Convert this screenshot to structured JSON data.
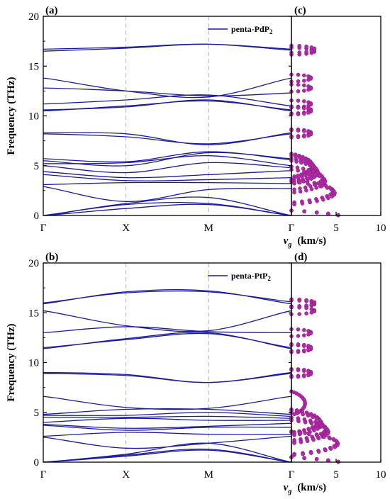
{
  "colors": {
    "band": "#1a1aa0",
    "vg_scatter": "#b02aa6",
    "grid_dash": "#b4b4b4",
    "axis": "#000000"
  },
  "chart_data": [
    {
      "type": "line",
      "panel_label": "(a)",
      "legend": {
        "name": "penta-PdP",
        "subscript": "2",
        "placement": "top-right"
      },
      "ylabel": "Frequency (THz)",
      "ylim": [
        0,
        20
      ],
      "y_ticks": [
        0,
        5,
        10,
        15,
        20
      ],
      "x_ticks": [
        "Γ",
        "X",
        "M",
        "Γ"
      ],
      "band_values": [
        [
          16.5,
          16.8,
          17.2,
          16.7
        ],
        [
          16.7,
          16.9,
          17.2,
          16.6
        ],
        [
          13.8,
          12.5,
          11.9,
          13.8
        ],
        [
          12.8,
          12.5,
          12.0,
          12.3
        ],
        [
          11.2,
          11.6,
          12.1,
          11.0
        ],
        [
          10.6,
          10.9,
          11.6,
          10.5
        ],
        [
          10.5,
          11.0,
          11.5,
          10.6
        ],
        [
          8.3,
          8.2,
          7.1,
          8.3
        ],
        [
          8.2,
          7.9,
          7.2,
          8.2
        ],
        [
          5.7,
          5.4,
          6.4,
          5.6
        ],
        [
          5.5,
          5.0,
          6.3,
          5.7
        ],
        [
          5.2,
          5.3,
          6.0,
          5.0
        ],
        [
          5.0,
          4.3,
          5.3,
          4.8
        ],
        [
          4.4,
          3.8,
          4.1,
          4.5
        ],
        [
          4.1,
          3.5,
          3.6,
          3.8
        ],
        [
          3.1,
          3.3,
          3.3,
          3.2
        ],
        [
          2.9,
          1.4,
          2.6,
          2.7
        ],
        [
          0,
          1.2,
          1.8,
          0
        ],
        [
          0,
          1.1,
          1.2,
          0
        ],
        [
          0,
          0.7,
          1.1,
          0
        ]
      ],
      "vg_panel_label": "(c)",
      "vg_xlabel": "v",
      "vg_xlabel_sub": "g",
      "vg_xlabel_unit": "(km/s)",
      "vg_xlim": [
        0,
        10
      ],
      "vg_x_ticks": [
        0,
        5,
        10
      ]
    },
    {
      "type": "line",
      "panel_label": "(b)",
      "legend": {
        "name": "penta-PtP",
        "subscript": "2",
        "placement": "top-right"
      },
      "ylabel": "Frequency (THz)",
      "ylim": [
        0,
        20
      ],
      "y_ticks": [
        0,
        5,
        10,
        15,
        20
      ],
      "x_ticks": [
        "Γ",
        "X",
        "M",
        "Γ"
      ],
      "band_values": [
        [
          15.9,
          17.1,
          17.2,
          15.9
        ],
        [
          16.0,
          17.0,
          17.1,
          16.1
        ],
        [
          15.2,
          13.7,
          13.2,
          15.2
        ],
        [
          13.0,
          13.6,
          13.1,
          13.0
        ],
        [
          11.4,
          12.4,
          13.0,
          11.4
        ],
        [
          11.5,
          12.3,
          12.9,
          11.5
        ],
        [
          9.0,
          8.8,
          8.0,
          9.0
        ],
        [
          8.9,
          8.7,
          8.0,
          8.9
        ],
        [
          6.6,
          5.5,
          5.4,
          6.6
        ],
        [
          4.8,
          5.3,
          5.3,
          4.8
        ],
        [
          4.7,
          4.7,
          5.0,
          4.6
        ],
        [
          4.5,
          4.5,
          4.6,
          4.4
        ],
        [
          4.0,
          4.4,
          4.2,
          4.2
        ],
        [
          3.8,
          3.4,
          3.6,
          3.9
        ],
        [
          3.7,
          3.2,
          3.5,
          3.5
        ],
        [
          2.6,
          3.0,
          2.8,
          2.8
        ],
        [
          2.5,
          1.4,
          1.9,
          2.6
        ],
        [
          0,
          0.8,
          1.9,
          0
        ],
        [
          0,
          0.7,
          1.3,
          0
        ],
        [
          0,
          0.6,
          1.2,
          0
        ]
      ],
      "vg_panel_label": "(d)",
      "vg_xlabel": "v",
      "vg_xlabel_sub": "g",
      "vg_xlabel_unit": "(km/s)",
      "vg_xlim": [
        0,
        10
      ],
      "vg_x_ticks": [
        0,
        5,
        10
      ]
    }
  ]
}
